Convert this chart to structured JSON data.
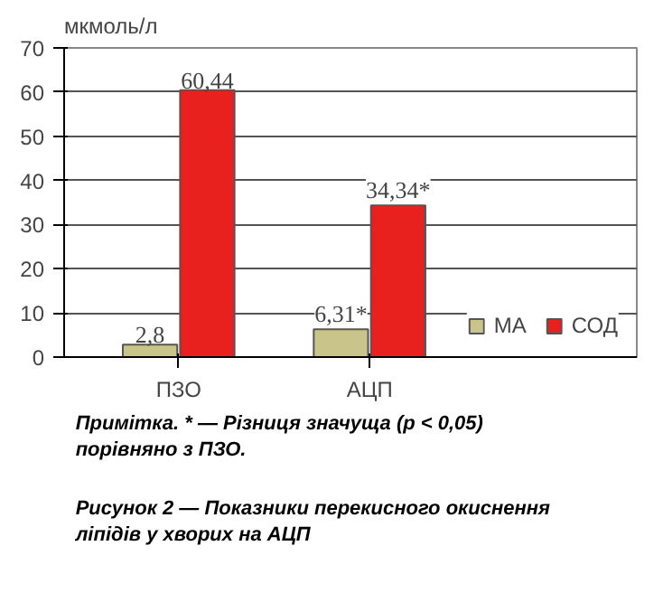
{
  "chart_data": {
    "type": "bar",
    "ylabel": "мкмоль/л",
    "categories": [
      "ПЗО",
      "АЦП"
    ],
    "series": [
      {
        "name": "МА",
        "color": "#c8c48a",
        "values": [
          2.8,
          6.31
        ],
        "value_labels": [
          "2,8",
          "6,31*"
        ]
      },
      {
        "name": "СОД",
        "color": "#e8201e",
        "values": [
          60.44,
          34.34
        ],
        "value_labels": [
          "60,44",
          "34,34*"
        ]
      }
    ],
    "ylim": [
      0,
      70
    ],
    "yticks": [
      0,
      10,
      20,
      30,
      40,
      50,
      60,
      70
    ],
    "grid": "y",
    "legend": "bottom right",
    "annotations": [
      "Примітка. * — Різниця значуща (p < 0,05) порівняно з ПЗО.",
      "Рисунок 2 — Показники перекисного окиснення ліпідів у хворих на АЦП"
    ]
  }
}
